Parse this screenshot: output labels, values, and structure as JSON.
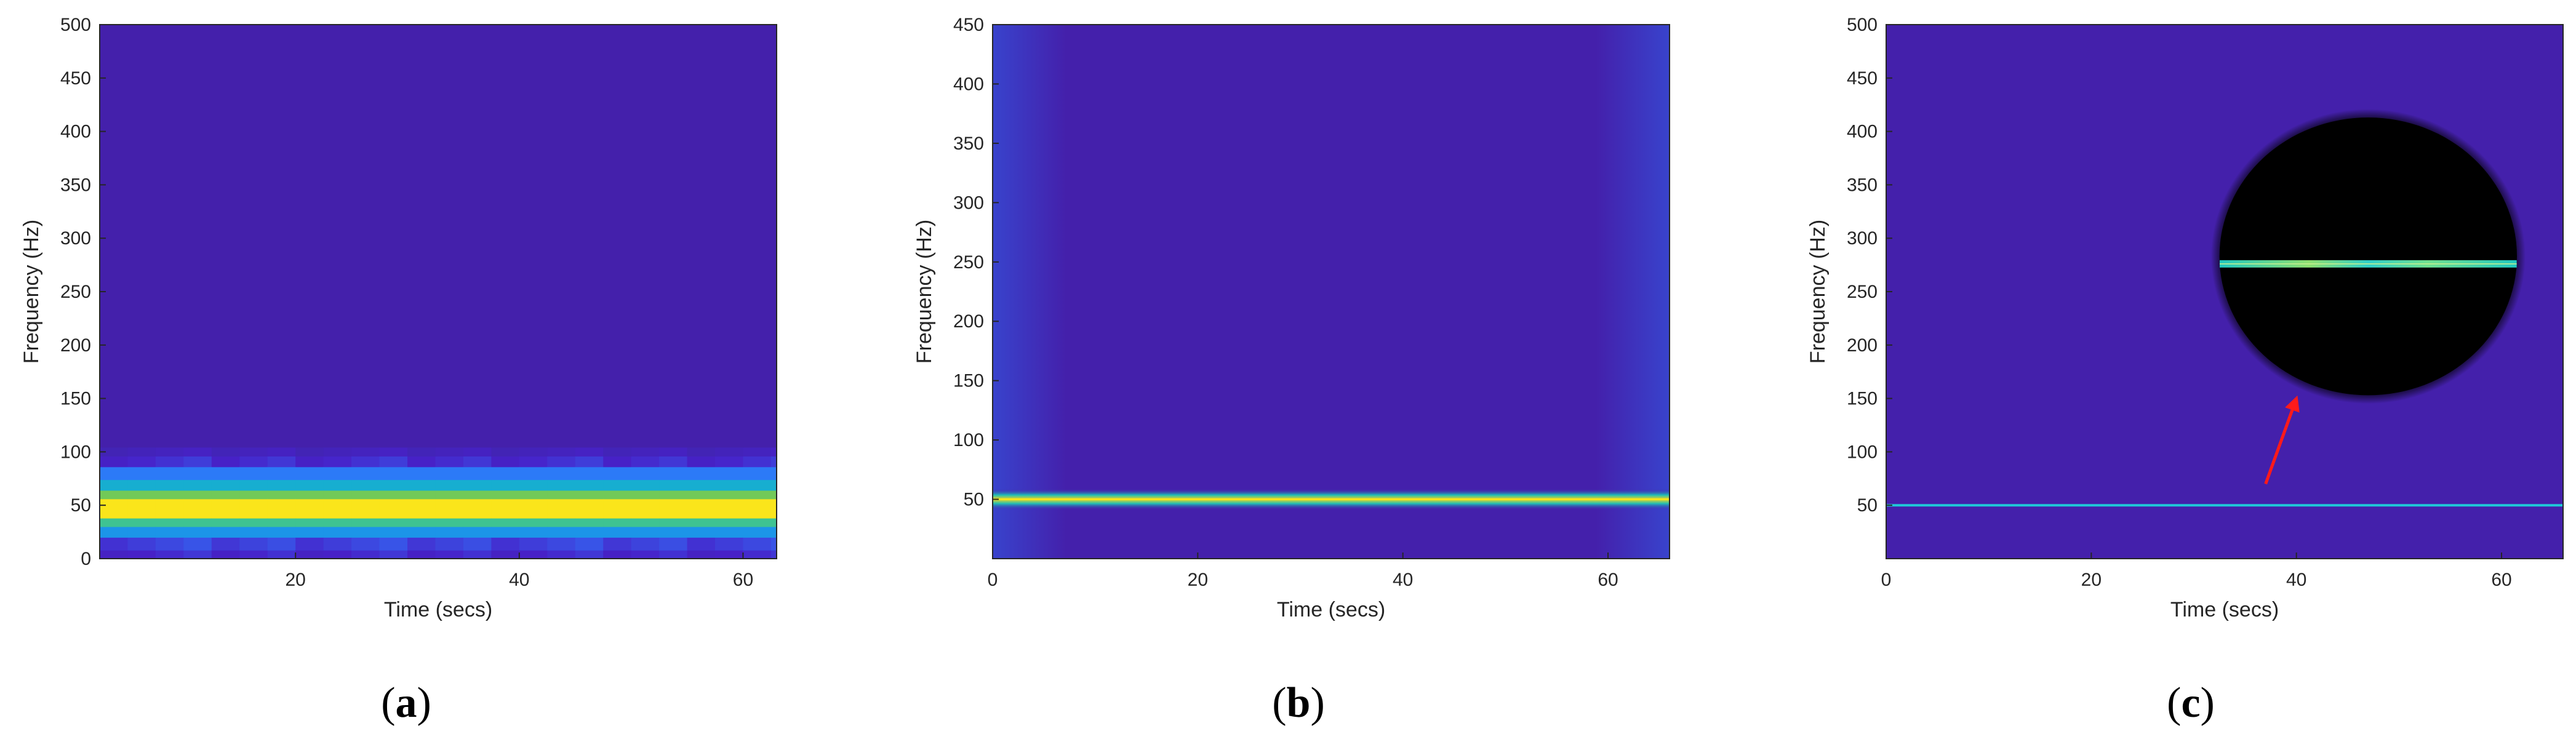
{
  "colors": {
    "background": "#4420ab",
    "colormap": [
      "#3e26a8",
      "#4721c8",
      "#2f75fa",
      "#12a5df",
      "#1fbfb5",
      "#7bca4e",
      "#e7b92c",
      "#fae51b"
    ],
    "axis": "#262626",
    "annotation_arrow": "#ff1a1a",
    "annotation_circle": "#000000"
  },
  "chart_data": [
    {
      "type": "heatmap",
      "panel": "a",
      "caption": {
        "open": "(",
        "letter": "a",
        "close": ")"
      },
      "xlabel": "Time (secs)",
      "ylabel": "Frequency (Hz)",
      "xlim": [
        2.5,
        63
      ],
      "ylim": [
        0,
        500
      ],
      "xticks": [
        20,
        40,
        60
      ],
      "yticks": [
        0,
        50,
        100,
        150,
        200,
        250,
        300,
        350,
        400,
        450,
        500
      ],
      "x_start": 2.5,
      "frame_length": 2.5,
      "band_center_hz": 47,
      "bands": [
        {
          "y0": 0,
          "y1": 8,
          "level": 0.15
        },
        {
          "y0": 8,
          "y1": 20,
          "level": 0.2
        },
        {
          "y0": 20,
          "y1": 30,
          "level": 0.38
        },
        {
          "y0": 30,
          "y1": 38,
          "level": 0.62
        },
        {
          "y0": 38,
          "y1": 56,
          "level": 1.0
        },
        {
          "y0": 56,
          "y1": 64,
          "level": 0.7
        },
        {
          "y0": 64,
          "y1": 74,
          "level": 0.48
        },
        {
          "y0": 74,
          "y1": 86,
          "level": 0.3
        },
        {
          "y0": 86,
          "y1": 96,
          "level": 0.16
        },
        {
          "y0": 96,
          "y1": 104,
          "level": 0.09
        }
      ]
    },
    {
      "type": "heatmap",
      "panel": "b",
      "caption": {
        "open": "(",
        "letter": "b",
        "close": ")"
      },
      "xlabel": "Time (secs)",
      "ylabel": "Frequency (Hz)",
      "xlim": [
        0,
        66
      ],
      "ylim": [
        0,
        450
      ],
      "xticks": [
        0,
        20,
        40,
        60
      ],
      "yticks": [
        50,
        100,
        150,
        200,
        250,
        300,
        350,
        400,
        450
      ],
      "ridge_frequency_hz": 50,
      "ridge_bandwidth_hz": 4
    },
    {
      "type": "heatmap",
      "panel": "c",
      "caption": {
        "open": "(",
        "letter": "c",
        "close": ")"
      },
      "xlabel": "Time (secs)",
      "ylabel": "Frequency (Hz)",
      "xlim": [
        0,
        66
      ],
      "ylim": [
        0,
        500
      ],
      "xticks": [
        0,
        20,
        40,
        60
      ],
      "yticks": [
        50,
        100,
        150,
        200,
        250,
        300,
        350,
        400,
        450,
        500
      ],
      "line_frequency_hz": 50,
      "zoom_inset": {
        "center_time_s": 47,
        "center_frequency_hz": 283,
        "radius_time_s": 14.5,
        "radius_frequency_hz": 130,
        "line_frequency_hz": 276
      },
      "arrow": {
        "from": [
          37,
          70
        ],
        "to": [
          40,
          150
        ]
      }
    }
  ]
}
